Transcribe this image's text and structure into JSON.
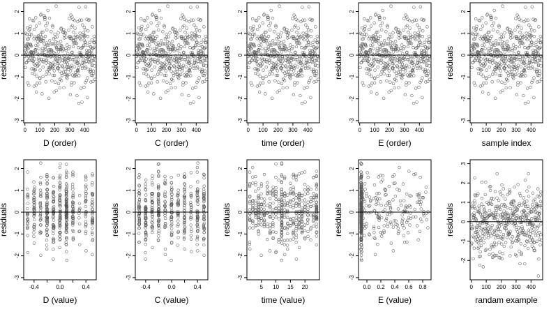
{
  "figure": {
    "colors": {
      "points": "#555555",
      "frame": "#000000",
      "background": "#ffffff"
    }
  },
  "chart_data": [
    {
      "type": "scatter",
      "xlabel": "D (order)",
      "ylabel": "residuals",
      "xlim": [
        -8,
        478
      ],
      "ylim": [
        -3.1,
        2.4
      ],
      "xticks": [
        0,
        100,
        200,
        300,
        400
      ],
      "xtick_labels": [
        "0",
        "100",
        "200",
        "300",
        "400"
      ],
      "yticks": [
        -3,
        -2,
        -1,
        0,
        1,
        2
      ],
      "ytick_labels": [
        "-3",
        "-2",
        "-1",
        "0",
        "1",
        "2"
      ],
      "reference_line_y": 0,
      "grid": false,
      "legend": "none",
      "x_kind": "index",
      "n_points": 470
    },
    {
      "type": "scatter",
      "xlabel": "C (order)",
      "ylabel": "residuals",
      "xlim": [
        -8,
        478
      ],
      "ylim": [
        -3.1,
        2.4
      ],
      "xticks": [
        0,
        100,
        200,
        300,
        400
      ],
      "xtick_labels": [
        "0",
        "100",
        "200",
        "300",
        "400"
      ],
      "yticks": [
        -3,
        -2,
        -1,
        0,
        1,
        2
      ],
      "ytick_labels": [
        "-3",
        "-2",
        "-1",
        "0",
        "1",
        "2"
      ],
      "reference_line_y": 0,
      "grid": false,
      "legend": "none",
      "x_kind": "index",
      "n_points": 470
    },
    {
      "type": "scatter",
      "xlabel": "time (order)",
      "ylabel": "residuals",
      "xlim": [
        -8,
        478
      ],
      "ylim": [
        -3.1,
        2.4
      ],
      "xticks": [
        0,
        100,
        200,
        300,
        400
      ],
      "xtick_labels": [
        "0",
        "100",
        "200",
        "300",
        "400"
      ],
      "yticks": [
        -3,
        -2,
        -1,
        0,
        1,
        2
      ],
      "ytick_labels": [
        "-3",
        "-2",
        "-1",
        "0",
        "1",
        "2"
      ],
      "reference_line_y": 0,
      "grid": false,
      "legend": "none",
      "x_kind": "index",
      "n_points": 470
    },
    {
      "type": "scatter",
      "xlabel": "E (order)",
      "ylabel": "residuals",
      "xlim": [
        -8,
        478
      ],
      "ylim": [
        -3.1,
        2.4
      ],
      "xticks": [
        0,
        100,
        200,
        300,
        400
      ],
      "xtick_labels": [
        "0",
        "100",
        "200",
        "300",
        "400"
      ],
      "yticks": [
        -3,
        -2,
        -1,
        0,
        1,
        2
      ],
      "ytick_labels": [
        "-3",
        "-2",
        "-1",
        "0",
        "1",
        "2"
      ],
      "reference_line_y": 0,
      "grid": false,
      "legend": "none",
      "x_kind": "index",
      "n_points": 470
    },
    {
      "type": "scatter",
      "xlabel": "sample index",
      "ylabel": "residuals",
      "xlim": [
        -8,
        478
      ],
      "ylim": [
        -3.1,
        2.4
      ],
      "xticks": [
        0,
        100,
        200,
        300,
        400
      ],
      "xtick_labels": [
        "0",
        "100",
        "200",
        "300",
        "400"
      ],
      "yticks": [
        -3,
        -2,
        -1,
        0,
        1,
        2
      ],
      "ytick_labels": [
        "-3",
        "-2",
        "-1",
        "0",
        "1",
        "2"
      ],
      "reference_line_y": 0,
      "grid": false,
      "legend": "none",
      "x_kind": "index",
      "n_points": 470
    },
    {
      "type": "scatter",
      "xlabel": "D (value)",
      "ylabel": "residuals",
      "xlim": [
        -0.56,
        0.56
      ],
      "ylim": [
        -3.1,
        2.4
      ],
      "xticks": [
        -0.4,
        -0.2,
        0.0,
        0.2,
        0.4
      ],
      "xtick_labels": [
        "-0.4",
        "",
        "0.0",
        "",
        "0.4"
      ],
      "yticks": [
        -3,
        -2,
        -1,
        0,
        1,
        2
      ],
      "ytick_labels": [
        "-3",
        "-2",
        "-1",
        "0",
        "1",
        "2"
      ],
      "reference_line_y": 0,
      "grid": false,
      "legend": "none",
      "x_kind": "discrete",
      "x_levels": [
        -0.5,
        -0.4,
        -0.3,
        -0.2,
        -0.1,
        0.0,
        0.1,
        0.2,
        0.3,
        0.4,
        0.5
      ],
      "level_weights": [
        2,
        2,
        2,
        3,
        3,
        4,
        5,
        3,
        2,
        2,
        2
      ],
      "n_points": 470
    },
    {
      "type": "scatter",
      "xlabel": "C (value)",
      "ylabel": "residuals",
      "xlim": [
        -0.56,
        0.56
      ],
      "ylim": [
        -3.1,
        2.4
      ],
      "xticks": [
        -0.4,
        -0.2,
        0.0,
        0.2,
        0.4
      ],
      "xtick_labels": [
        "-0.4",
        "",
        "0.0",
        "",
        "0.4"
      ],
      "yticks": [
        -3,
        -2,
        -1,
        0,
        1,
        2
      ],
      "ytick_labels": [
        "-3",
        "-2",
        "-1",
        "0",
        "1",
        "2"
      ],
      "reference_line_y": 0,
      "grid": false,
      "legend": "none",
      "x_kind": "discrete",
      "x_levels": [
        -0.5,
        -0.4,
        -0.3,
        -0.2,
        -0.1,
        0.0,
        0.1,
        0.2,
        0.3,
        0.4,
        0.5
      ],
      "level_weights": [
        3,
        2,
        2,
        4,
        2,
        2,
        2,
        3,
        2,
        3,
        3
      ],
      "n_points": 470
    },
    {
      "type": "scatter",
      "xlabel": "time (value)",
      "ylabel": "residuals",
      "xlim": [
        0,
        25
      ],
      "ylim": [
        -3.1,
        2.4
      ],
      "xticks": [
        5,
        10,
        15,
        20
      ],
      "xtick_labels": [
        "5",
        "10",
        "15",
        "20"
      ],
      "yticks": [
        -3,
        -2,
        -1,
        0,
        1,
        2
      ],
      "ytick_labels": [
        "-3",
        "-2",
        "-1",
        "0",
        "1",
        "2"
      ],
      "reference_line_y": 0,
      "grid": false,
      "legend": "none",
      "x_kind": "discrete",
      "x_levels": [
        1,
        2,
        3,
        4,
        5,
        6,
        7,
        8,
        9,
        10,
        11,
        12,
        13,
        14,
        15,
        16,
        17,
        18,
        19,
        20,
        21,
        22,
        23,
        24
      ],
      "level_weights": [
        1,
        1,
        1,
        1,
        1,
        1,
        1,
        1,
        1,
        1,
        1,
        3,
        1,
        1,
        1,
        1,
        1,
        1,
        1,
        1,
        1,
        1,
        1,
        2
      ],
      "n_points": 470
    },
    {
      "type": "scatter",
      "xlabel": "E (value)",
      "ylabel": "residuals",
      "xlim": [
        -0.12,
        0.92
      ],
      "ylim": [
        -3.1,
        2.4
      ],
      "xticks": [
        0.0,
        0.2,
        0.4,
        0.6,
        0.8
      ],
      "xtick_labels": [
        "0.0",
        "0.2",
        "0.4",
        "0.6",
        "0.8"
      ],
      "yticks": [
        -3,
        -2,
        -1,
        0,
        1,
        2
      ],
      "ytick_labels": [
        "-3",
        "-2",
        "-1",
        "0",
        "1",
        "2"
      ],
      "reference_line_y": 0,
      "grid": false,
      "legend": "none",
      "x_kind": "skewed",
      "x_cluster": -0.08,
      "x_cluster_share": 0.6,
      "x_range": [
        -0.08,
        0.88
      ],
      "n_points": 470
    },
    {
      "type": "scatter",
      "xlabel": "randam example",
      "ylabel": "residuals",
      "xlim": [
        -8,
        478
      ],
      "ylim": [
        -3.0,
        3.2
      ],
      "xticks": [
        0,
        100,
        200,
        300,
        400
      ],
      "xtick_labels": [
        "0",
        "100",
        "200",
        "300",
        "400"
      ],
      "yticks": [
        -2,
        -1,
        0,
        1,
        2,
        3
      ],
      "ytick_labels": [
        "-2",
        "-1",
        "0",
        "1",
        "2",
        "3"
      ],
      "reference_line_y": 0,
      "grid": false,
      "legend": "none",
      "x_kind": "index",
      "n_points": 470
    }
  ]
}
